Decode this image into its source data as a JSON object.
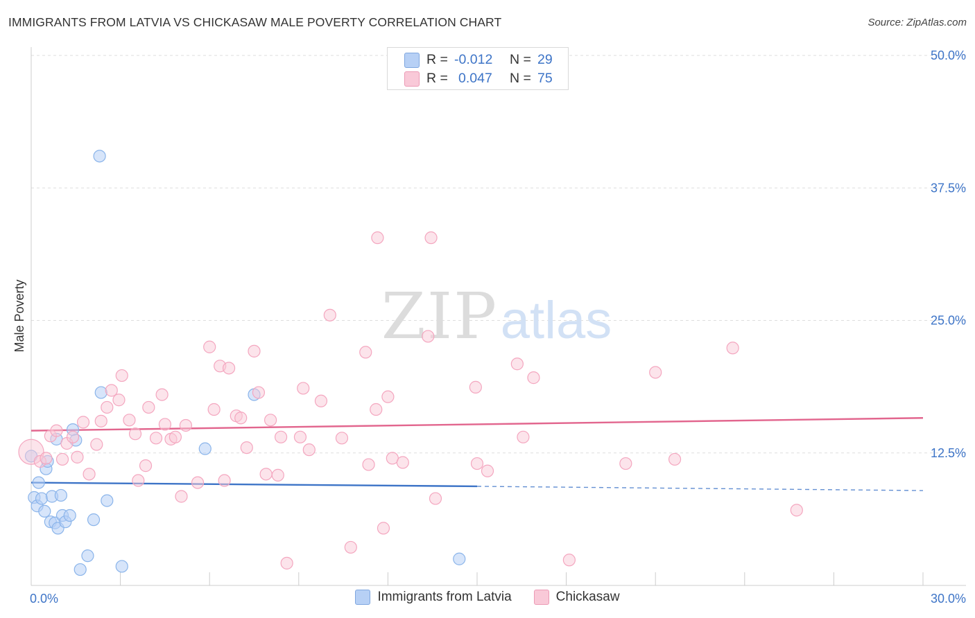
{
  "title": "IMMIGRANTS FROM LATVIA VS CHICKASAW MALE POVERTY CORRELATION CHART",
  "source": "Source: ZipAtlas.com",
  "watermark": {
    "zip": "ZIP",
    "atlas": "atlas"
  },
  "stats": [
    {
      "r_label": "R =",
      "r_value": "-0.012",
      "n_label": "N =",
      "n_value": "29",
      "color": "#b7d0f5"
    },
    {
      "r_label": "R =",
      "r_value": "0.047",
      "n_label": "N =",
      "n_value": "75",
      "color": "#f9c9d8"
    }
  ],
  "legend": [
    {
      "label": "Immigrants from Latvia",
      "color": "#b7d0f5"
    },
    {
      "label": "Chickasaw",
      "color": "#f9c9d8"
    }
  ],
  "chart_data": {
    "type": "scatter",
    "xlabel": "",
    "ylabel": "Male Poverty",
    "xlim": [
      0,
      30
    ],
    "ylim": [
      0,
      50
    ],
    "x_tick_labels": [
      {
        "value": 0,
        "label": "0.0%"
      },
      {
        "value": 30,
        "label": "30.0%"
      }
    ],
    "y_ticks": [
      {
        "value": 12.5,
        "label": "12.5%"
      },
      {
        "value": 25,
        "label": "25.0%"
      },
      {
        "value": 37.5,
        "label": "37.5%"
      },
      {
        "value": 50,
        "label": "50.0%"
      }
    ],
    "grid": true,
    "series": [
      {
        "name": "Immigrants from Latvia",
        "color": "#8ab4ea",
        "line_color": "#3d74c7",
        "trend": {
          "x0": 0,
          "y0": 9.7,
          "x1": 15,
          "y1": 9.35,
          "dashed_to": 30,
          "dashed_y": 8.95
        },
        "points": [
          [
            0.0,
            12.2
          ],
          [
            0.1,
            8.3
          ],
          [
            0.2,
            7.5
          ],
          [
            0.25,
            9.7
          ],
          [
            0.35,
            8.2
          ],
          [
            0.45,
            7.0
          ],
          [
            0.5,
            11.0
          ],
          [
            0.55,
            11.7
          ],
          [
            0.65,
            6.0
          ],
          [
            0.7,
            8.4
          ],
          [
            0.8,
            5.9
          ],
          [
            0.85,
            13.8
          ],
          [
            0.9,
            5.4
          ],
          [
            1.0,
            8.5
          ],
          [
            1.05,
            6.6
          ],
          [
            1.15,
            6.0
          ],
          [
            1.3,
            6.6
          ],
          [
            1.4,
            14.7
          ],
          [
            1.5,
            13.7
          ],
          [
            1.65,
            1.5
          ],
          [
            1.9,
            2.8
          ],
          [
            2.1,
            6.2
          ],
          [
            2.3,
            40.5
          ],
          [
            2.35,
            18.2
          ],
          [
            2.55,
            8.0
          ],
          [
            3.05,
            1.8
          ],
          [
            5.85,
            12.9
          ],
          [
            7.5,
            18.0
          ],
          [
            14.4,
            2.5
          ]
        ]
      },
      {
        "name": "Chickasaw",
        "color": "#f4a6bf",
        "line_color": "#e2668e",
        "trend": {
          "x0": 0,
          "y0": 14.6,
          "x1": 30,
          "y1": 15.8
        },
        "points": [
          [
            0.0,
            12.6
          ],
          [
            0.3,
            11.7
          ],
          [
            0.5,
            12.0
          ],
          [
            0.65,
            14.1
          ],
          [
            0.85,
            14.6
          ],
          [
            1.05,
            11.9
          ],
          [
            1.2,
            13.4
          ],
          [
            1.4,
            14.0
          ],
          [
            1.55,
            12.1
          ],
          [
            1.75,
            15.4
          ],
          [
            1.95,
            10.5
          ],
          [
            2.2,
            13.3
          ],
          [
            2.35,
            15.5
          ],
          [
            2.55,
            16.8
          ],
          [
            2.7,
            18.4
          ],
          [
            2.95,
            17.5
          ],
          [
            3.05,
            19.8
          ],
          [
            3.3,
            15.6
          ],
          [
            3.5,
            14.3
          ],
          [
            3.6,
            9.9
          ],
          [
            3.85,
            11.3
          ],
          [
            3.95,
            16.8
          ],
          [
            4.2,
            13.9
          ],
          [
            4.4,
            18.0
          ],
          [
            4.5,
            15.2
          ],
          [
            4.7,
            13.8
          ],
          [
            4.85,
            14.0
          ],
          [
            5.05,
            8.4
          ],
          [
            5.2,
            15.1
          ],
          [
            5.6,
            9.7
          ],
          [
            6.0,
            22.5
          ],
          [
            6.15,
            16.6
          ],
          [
            6.35,
            20.7
          ],
          [
            6.65,
            20.5
          ],
          [
            6.5,
            9.9
          ],
          [
            6.9,
            16.0
          ],
          [
            7.05,
            15.8
          ],
          [
            7.25,
            13.0
          ],
          [
            7.5,
            22.1
          ],
          [
            7.65,
            18.2
          ],
          [
            7.9,
            10.5
          ],
          [
            8.05,
            15.6
          ],
          [
            8.3,
            10.4
          ],
          [
            8.4,
            14.0
          ],
          [
            8.6,
            2.1
          ],
          [
            9.05,
            14.0
          ],
          [
            9.15,
            18.6
          ],
          [
            9.35,
            12.8
          ],
          [
            9.75,
            17.4
          ],
          [
            10.05,
            25.5
          ],
          [
            10.45,
            13.9
          ],
          [
            10.75,
            3.6
          ],
          [
            11.25,
            22.0
          ],
          [
            11.35,
            11.4
          ],
          [
            11.6,
            16.6
          ],
          [
            11.65,
            32.8
          ],
          [
            11.85,
            5.4
          ],
          [
            12.0,
            17.8
          ],
          [
            12.15,
            12.0
          ],
          [
            12.5,
            11.6
          ],
          [
            13.35,
            23.5
          ],
          [
            13.45,
            32.8
          ],
          [
            13.6,
            8.2
          ],
          [
            14.95,
            18.7
          ],
          [
            15.0,
            11.5
          ],
          [
            15.35,
            10.8
          ],
          [
            16.35,
            20.9
          ],
          [
            16.55,
            14.0
          ],
          [
            16.9,
            19.6
          ],
          [
            18.1,
            2.4
          ],
          [
            20.0,
            11.5
          ],
          [
            21.0,
            20.1
          ],
          [
            21.65,
            11.9
          ],
          [
            23.6,
            22.4
          ],
          [
            25.75,
            7.1
          ]
        ]
      }
    ]
  }
}
